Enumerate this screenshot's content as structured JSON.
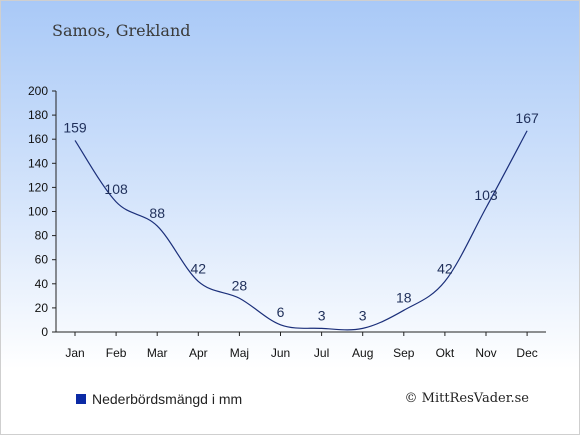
{
  "location_title": "Samos, Grekland",
  "legend_label": "Nederbördsmängd i mm",
  "credit": "© MittResVader.se",
  "colors": {
    "line": "#1b2f7a",
    "swatch": "#0b2aa5",
    "label": "#1f2f5a"
  },
  "chart_data": {
    "type": "line",
    "categories": [
      "Jan",
      "Feb",
      "Mar",
      "Apr",
      "Maj",
      "Jun",
      "Jul",
      "Aug",
      "Sep",
      "Okt",
      "Nov",
      "Dec"
    ],
    "series": [
      {
        "name": "Nederbördsmängd i mm",
        "values": [
          159,
          108,
          88,
          42,
          28,
          6,
          3,
          3,
          18,
          42,
          103,
          167
        ]
      }
    ],
    "ylim": [
      0,
      200
    ],
    "yticks": [
      0,
      20,
      40,
      60,
      80,
      100,
      120,
      140,
      160,
      180,
      200
    ],
    "grid": false,
    "legend": "bottom-left"
  }
}
